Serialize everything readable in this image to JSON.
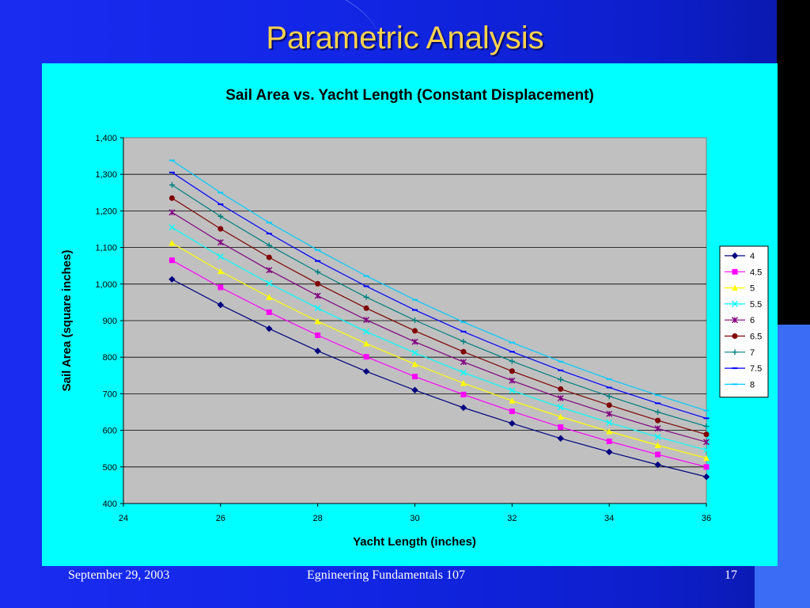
{
  "slide": {
    "title": "Parametric Analysis",
    "footer_left": "September 29, 2003",
    "footer_center": "Egnineering Fundamentals 107",
    "footer_right": "17"
  },
  "colors": {
    "background": "#1226e6",
    "panel": "#00ffff",
    "plot_area": "#c0c0c0",
    "title_text": "#ffd34a"
  },
  "chart_data": {
    "type": "line",
    "title": "Sail Area vs. Yacht Length (Constant Displacement)",
    "xlabel": "Yacht Length (inches)",
    "ylabel": "Sail Area (square inches)",
    "xlim": [
      24,
      36
    ],
    "ylim": [
      400,
      1400
    ],
    "x_ticks": [
      24,
      26,
      28,
      30,
      32,
      34,
      36
    ],
    "y_ticks": [
      400,
      500,
      600,
      700,
      800,
      900,
      1000,
      1100,
      1200,
      1300,
      1400
    ],
    "y_tick_labels": [
      "400",
      "500",
      "600",
      "700",
      "800",
      "900",
      "1,000",
      "1,100",
      "1,200",
      "1,300",
      "1,400"
    ],
    "grid": "horizontal",
    "legend_position": "right",
    "x": [
      25,
      26,
      27,
      28,
      29,
      30,
      31,
      32,
      33,
      34,
      35,
      36
    ],
    "series": [
      {
        "name": "4",
        "color": "#000080",
        "marker": "diamond",
        "values": [
          1013,
          943,
          878,
          817,
          761,
          710,
          662,
          619,
          578,
          541,
          506,
          473
        ]
      },
      {
        "name": "4.5",
        "color": "#ff00ff",
        "marker": "square",
        "values": [
          1065,
          991,
          923,
          860,
          801,
          747,
          698,
          652,
          609,
          570,
          534,
          500
        ]
      },
      {
        "name": "5",
        "color": "#ffff00",
        "marker": "triangle",
        "values": [
          1112,
          1035,
          964,
          898,
          837,
          781,
          729,
          681,
          637,
          597,
          559,
          524
        ]
      },
      {
        "name": "5.5",
        "color": "#00ffff",
        "marker": "x",
        "values": [
          1155,
          1075,
          1002,
          934,
          870,
          812,
          758,
          709,
          663,
          621,
          582,
          546
        ]
      },
      {
        "name": "6",
        "color": "#800080",
        "marker": "star",
        "values": [
          1196,
          1114,
          1038,
          968,
          902,
          842,
          787,
          736,
          688,
          645,
          605,
          568
        ]
      },
      {
        "name": "6.5",
        "color": "#800000",
        "marker": "circle",
        "values": [
          1235,
          1151,
          1073,
          1001,
          934,
          872,
          815,
          762,
          713,
          669,
          627,
          589
        ]
      },
      {
        "name": "7",
        "color": "#008080",
        "marker": "plus",
        "values": [
          1271,
          1185,
          1106,
          1033,
          964,
          901,
          843,
          789,
          739,
          693,
          650,
          611
        ]
      },
      {
        "name": "7.5",
        "color": "#0000ff",
        "marker": "dash",
        "values": [
          1305,
          1218,
          1138,
          1063,
          994,
          929,
          870,
          815,
          764,
          717,
          674,
          633
        ]
      },
      {
        "name": "8",
        "color": "#00ccff",
        "marker": "dash",
        "values": [
          1338,
          1250,
          1168,
          1093,
          1022,
          957,
          896,
          840,
          788,
          740,
          696,
          654
        ]
      }
    ]
  }
}
